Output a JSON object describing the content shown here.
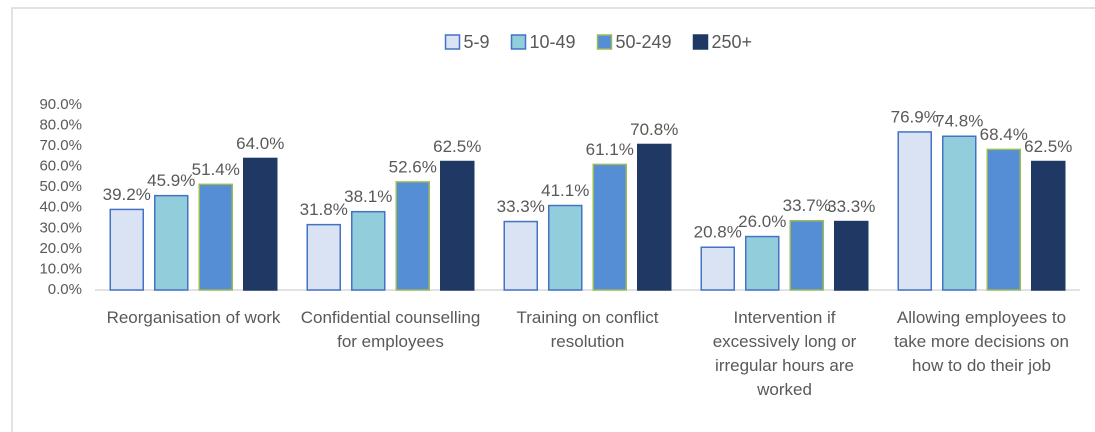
{
  "chart_data": {
    "type": "bar",
    "categories": [
      "Reorganisation of work",
      "Confidential counselling for employees",
      "Training on conflict resolution",
      "Intervention if excessively long or irregular hours are worked",
      "Allowing employees to take more decisions on how to do their job"
    ],
    "series": [
      {
        "name": "5-9",
        "color": "#dae3f3",
        "edgecolor": "#4472c4",
        "values": [
          39.2,
          31.8,
          33.3,
          20.8,
          76.9
        ],
        "value_labels": [
          "39.2%",
          "31.8%",
          "33.3%",
          "20.8%",
          "76.9%"
        ]
      },
      {
        "name": "10-49",
        "color": "#92cddc",
        "edgecolor": "#4472c4",
        "values": [
          45.9,
          38.1,
          41.1,
          26.0,
          74.8
        ],
        "value_labels": [
          "45.9%",
          "38.1%",
          "41.1%",
          "26.0%",
          "74.8%"
        ]
      },
      {
        "name": "50-249",
        "color": "#558ed5",
        "edgecolor": "#9bbb59",
        "values": [
          51.4,
          52.6,
          61.1,
          33.7,
          68.4
        ],
        "value_labels": [
          "51.4%",
          "52.6%",
          "61.1%",
          "33.7%",
          "68.4%"
        ]
      },
      {
        "name": "250+",
        "color": "#1f3864",
        "edgecolor": "#1f3864",
        "values": [
          64.0,
          62.5,
          70.8,
          33.3,
          62.5
        ],
        "value_labels": [
          "64.0%",
          "62.5%",
          "70.8%",
          "33.3%",
          "62.5%"
        ]
      }
    ],
    "ylim": [
      0,
      90
    ],
    "yticks": [
      {
        "value": 0,
        "label": "0.0%"
      },
      {
        "value": 10,
        "label": "10.0%"
      },
      {
        "value": 20,
        "label": "20.0%"
      },
      {
        "value": 30,
        "label": "30.0%"
      },
      {
        "value": 40,
        "label": "40.0%"
      },
      {
        "value": 50,
        "label": "50.0%"
      },
      {
        "value": 60,
        "label": "60.0%"
      },
      {
        "value": 70,
        "label": "70.0%"
      },
      {
        "value": 80,
        "label": "80.0%"
      },
      {
        "value": 90,
        "label": "90.0%"
      }
    ],
    "grid": false,
    "legend": "top"
  }
}
